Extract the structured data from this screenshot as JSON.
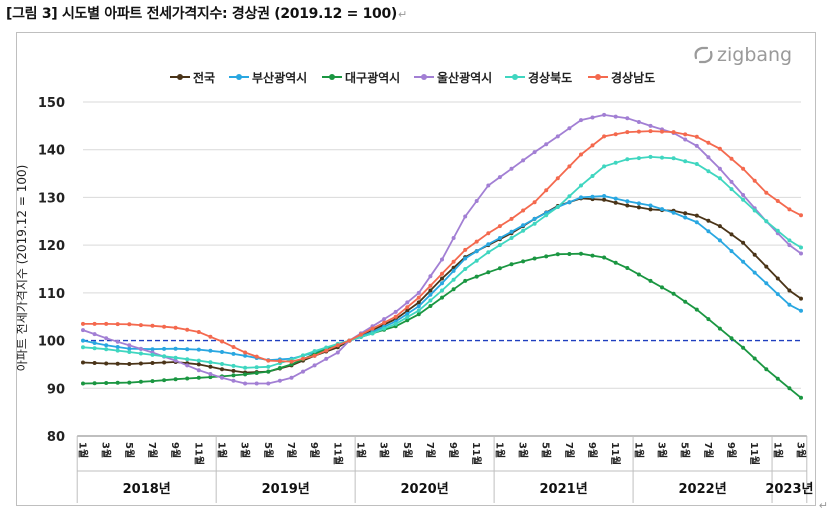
{
  "doc_title": "[그림 3] 시도별 아파트 전세가격지수: 경상권 (2019.12 = 100)",
  "paragraph_mark": "↵",
  "end_mark": "↵",
  "logo_text": "zigbang",
  "colors": {
    "reference_line": "#1f3fbf",
    "grid": "#d9d9d9",
    "axis_text": "#222222"
  },
  "chart_data": {
    "type": "line",
    "ylabel": "아파트 전세가격지수 (2019.12 = 100)",
    "ylim": [
      80,
      150
    ],
    "yticks": [
      80,
      90,
      100,
      110,
      120,
      130,
      140,
      150
    ],
    "reference_value": 100,
    "reference_style": "dashed",
    "grid": "horizontal",
    "legend_position": "top",
    "month_labels": [
      "1월",
      "3월",
      "5월",
      "7월",
      "9월",
      "11월",
      "1월",
      "3월",
      "5월",
      "7월",
      "9월",
      "11월",
      "1월",
      "3월",
      "5월",
      "7월",
      "9월",
      "11월",
      "1월",
      "3월",
      "5월",
      "7월",
      "9월",
      "11월",
      "1월",
      "3월",
      "5월",
      "7월",
      "9월",
      "11월",
      "1월",
      "3월"
    ],
    "years": [
      {
        "label": "2018년",
        "start": 1,
        "months": 12
      },
      {
        "label": "2019년",
        "start": 13,
        "months": 12
      },
      {
        "label": "2020년",
        "start": 25,
        "months": 12
      },
      {
        "label": "2021년",
        "start": 37,
        "months": 12
      },
      {
        "label": "2022년",
        "start": 49,
        "months": 12
      },
      {
        "label": "2023년",
        "start": 61,
        "months": 3
      }
    ],
    "x_start": "2018-01",
    "x_end": "2023-03",
    "series": [
      {
        "name": "전국",
        "color": "#4a3418",
        "anchors": [
          [
            1,
            95.4
          ],
          [
            3,
            95.2
          ],
          [
            5,
            95.1
          ],
          [
            7,
            95.3
          ],
          [
            9,
            95.5
          ],
          [
            11,
            95
          ],
          [
            13,
            94
          ],
          [
            15,
            93.3
          ],
          [
            17,
            93.5
          ],
          [
            19,
            94.8
          ],
          [
            21,
            96.8
          ],
          [
            23,
            98.6
          ],
          [
            24,
            100
          ],
          [
            26,
            102.2
          ],
          [
            28,
            104.5
          ],
          [
            30,
            108
          ],
          [
            32,
            113
          ],
          [
            34,
            117.5
          ],
          [
            36,
            120
          ],
          [
            38,
            122.5
          ],
          [
            40,
            125.5
          ],
          [
            42,
            128.2
          ],
          [
            44,
            129.8
          ],
          [
            46,
            129.5
          ],
          [
            48,
            128.3
          ],
          [
            50,
            127.5
          ],
          [
            52,
            127.2
          ],
          [
            54,
            126.2
          ],
          [
            56,
            124
          ],
          [
            58,
            120.5
          ],
          [
            60,
            115.5
          ],
          [
            62,
            110.5
          ],
          [
            63,
            108.8
          ],
          [
            64,
            108.6
          ],
          [
            65,
            109.1
          ]
        ]
      },
      {
        "name": "부산광역시",
        "color": "#29a7e1",
        "anchors": [
          [
            1,
            100
          ],
          [
            3,
            99
          ],
          [
            5,
            98.3
          ],
          [
            7,
            98.2
          ],
          [
            9,
            98.3
          ],
          [
            11,
            98.1
          ],
          [
            13,
            97.6
          ],
          [
            15,
            96.8
          ],
          [
            17,
            95.9
          ],
          [
            19,
            96.2
          ],
          [
            21,
            97.5
          ],
          [
            23,
            99
          ],
          [
            24,
            100
          ],
          [
            26,
            101.8
          ],
          [
            28,
            104
          ],
          [
            30,
            107.2
          ],
          [
            32,
            112
          ],
          [
            34,
            117.2
          ],
          [
            36,
            120.2
          ],
          [
            38,
            122.8
          ],
          [
            40,
            125.5
          ],
          [
            42,
            128
          ],
          [
            44,
            130
          ],
          [
            46,
            130.3
          ],
          [
            48,
            129.2
          ],
          [
            50,
            128.3
          ],
          [
            52,
            126.8
          ],
          [
            54,
            124.8
          ],
          [
            56,
            121
          ],
          [
            58,
            116.5
          ],
          [
            60,
            112
          ],
          [
            62,
            107.5
          ],
          [
            64,
            105
          ],
          [
            65,
            104.4
          ]
        ]
      },
      {
        "name": "대구광역시",
        "color": "#1a9641",
        "anchors": [
          [
            1,
            91
          ],
          [
            3,
            91.1
          ],
          [
            5,
            91.2
          ],
          [
            7,
            91.5
          ],
          [
            9,
            91.9
          ],
          [
            11,
            92.2
          ],
          [
            13,
            92.5
          ],
          [
            15,
            92.9
          ],
          [
            17,
            93.5
          ],
          [
            19,
            95
          ],
          [
            21,
            97.2
          ],
          [
            23,
            99.2
          ],
          [
            24,
            100
          ],
          [
            26,
            101.5
          ],
          [
            28,
            103
          ],
          [
            30,
            105.5
          ],
          [
            32,
            109
          ],
          [
            34,
            112.5
          ],
          [
            36,
            114.3
          ],
          [
            38,
            116
          ],
          [
            40,
            117.2
          ],
          [
            42,
            118.1
          ],
          [
            44,
            118.2
          ],
          [
            46,
            117.4
          ],
          [
            48,
            115.2
          ],
          [
            50,
            112.5
          ],
          [
            52,
            109.8
          ],
          [
            54,
            106.5
          ],
          [
            56,
            102.5
          ],
          [
            58,
            98.5
          ],
          [
            60,
            94
          ],
          [
            62,
            90
          ],
          [
            63,
            88
          ],
          [
            64,
            86.5
          ],
          [
            65,
            86
          ]
        ]
      },
      {
        "name": "울산광역시",
        "color": "#a27fd4",
        "anchors": [
          [
            1,
            102.2
          ],
          [
            3,
            100.5
          ],
          [
            5,
            99
          ],
          [
            7,
            97.5
          ],
          [
            9,
            95.8
          ],
          [
            11,
            93.8
          ],
          [
            13,
            92.2
          ],
          [
            15,
            91
          ],
          [
            17,
            91
          ],
          [
            19,
            92.2
          ],
          [
            21,
            94.8
          ],
          [
            23,
            97.5
          ],
          [
            24,
            100
          ],
          [
            26,
            103
          ],
          [
            28,
            106
          ],
          [
            30,
            110
          ],
          [
            32,
            117
          ],
          [
            34,
            126
          ],
          [
            36,
            132.5
          ],
          [
            38,
            136
          ],
          [
            40,
            139.5
          ],
          [
            42,
            142.8
          ],
          [
            44,
            146.2
          ],
          [
            46,
            147.3
          ],
          [
            48,
            146.6
          ],
          [
            50,
            145
          ],
          [
            52,
            143.5
          ],
          [
            54,
            140.8
          ],
          [
            56,
            136
          ],
          [
            58,
            130.5
          ],
          [
            60,
            125
          ],
          [
            62,
            120
          ],
          [
            64,
            116.5
          ],
          [
            65,
            114.7
          ]
        ]
      },
      {
        "name": "경상북도",
        "color": "#3fd6c0",
        "anchors": [
          [
            1,
            98.6
          ],
          [
            3,
            98.2
          ],
          [
            5,
            97.6
          ],
          [
            7,
            97
          ],
          [
            9,
            96.4
          ],
          [
            11,
            95.8
          ],
          [
            13,
            95.1
          ],
          [
            15,
            94.3
          ],
          [
            17,
            94.5
          ],
          [
            19,
            96
          ],
          [
            21,
            97.8
          ],
          [
            23,
            99.3
          ],
          [
            24,
            100
          ],
          [
            26,
            101.5
          ],
          [
            28,
            103.5
          ],
          [
            30,
            106.3
          ],
          [
            32,
            110.5
          ],
          [
            34,
            115
          ],
          [
            36,
            118.5
          ],
          [
            38,
            121.5
          ],
          [
            40,
            124.5
          ],
          [
            42,
            128
          ],
          [
            44,
            132.5
          ],
          [
            46,
            136.5
          ],
          [
            48,
            138
          ],
          [
            50,
            138.5
          ],
          [
            52,
            138.2
          ],
          [
            54,
            137
          ],
          [
            56,
            134
          ],
          [
            58,
            129.5
          ],
          [
            60,
            125
          ],
          [
            62,
            121
          ],
          [
            64,
            118
          ],
          [
            65,
            117.3
          ]
        ]
      },
      {
        "name": "경상남도",
        "color": "#f4694e",
        "anchors": [
          [
            1,
            103.5
          ],
          [
            3,
            103.5
          ],
          [
            5,
            103.4
          ],
          [
            7,
            103.1
          ],
          [
            9,
            102.7
          ],
          [
            11,
            101.8
          ],
          [
            13,
            99.8
          ],
          [
            15,
            97.5
          ],
          [
            17,
            95.8
          ],
          [
            19,
            95.6
          ],
          [
            21,
            96.8
          ],
          [
            23,
            99
          ],
          [
            24,
            100
          ],
          [
            26,
            102.5
          ],
          [
            28,
            105
          ],
          [
            30,
            109
          ],
          [
            32,
            114
          ],
          [
            34,
            119
          ],
          [
            36,
            122.5
          ],
          [
            38,
            125.5
          ],
          [
            40,
            129
          ],
          [
            42,
            134
          ],
          [
            44,
            139
          ],
          [
            46,
            142.8
          ],
          [
            48,
            143.7
          ],
          [
            50,
            143.9
          ],
          [
            52,
            143.7
          ],
          [
            54,
            142.7
          ],
          [
            56,
            140.2
          ],
          [
            58,
            136
          ],
          [
            60,
            131
          ],
          [
            62,
            127.5
          ],
          [
            64,
            125
          ],
          [
            65,
            124.3
          ]
        ]
      }
    ]
  }
}
